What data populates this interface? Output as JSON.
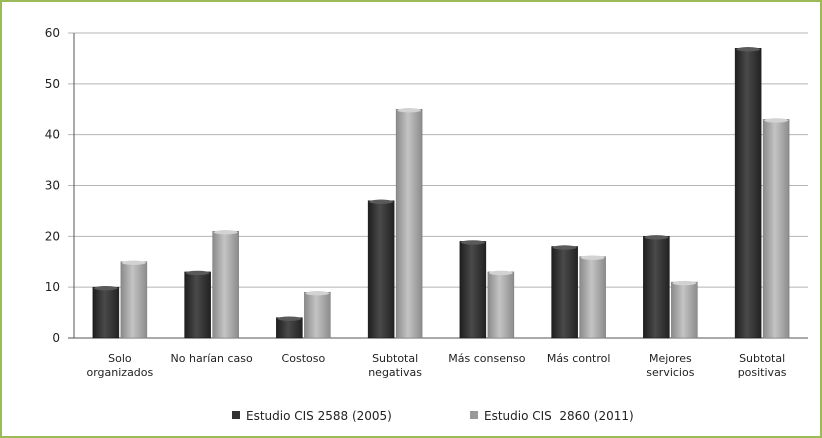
{
  "chart_data": {
    "type": "bar",
    "title": "",
    "xlabel": "",
    "ylabel": "",
    "ylim": [
      0,
      60
    ],
    "yticks": [
      0,
      10,
      20,
      30,
      40,
      50,
      60
    ],
    "grid": true,
    "legend_position": "bottom",
    "categories": [
      [
        "Solo",
        "organizados"
      ],
      [
        "No harían caso"
      ],
      [
        "Costoso"
      ],
      [
        "Subtotal",
        "negativas"
      ],
      [
        "Más consenso"
      ],
      [
        "Más control"
      ],
      [
        "Mejores",
        "servicios"
      ],
      [
        "Subtotal",
        "positivas"
      ]
    ],
    "series": [
      {
        "name": "Estudio CIS 2588 (2005)",
        "color": "#333333",
        "values": [
          10,
          13,
          4,
          27,
          19,
          18,
          20,
          57
        ]
      },
      {
        "name": "Estudio CIS  2860 (2011)",
        "color": "#999999",
        "values": [
          15,
          21,
          9,
          45,
          13,
          16,
          11,
          43
        ]
      }
    ]
  }
}
